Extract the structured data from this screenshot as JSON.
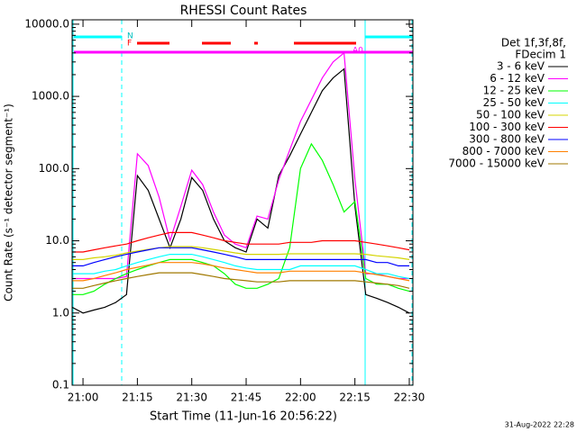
{
  "chart_data": {
    "type": "line",
    "title": "RHESSI Count Rates",
    "x_label": "Start Time (11-Jun-16 20:56:22)",
    "y_label": "Count Rate (s⁻¹ detector segment⁻¹)",
    "footer": "31-Aug-2022 22:28",
    "legend_title": [
      "Det 1f,3f,8f,",
      "FDecim 1"
    ],
    "annotations": [
      "N",
      "F",
      "A0"
    ],
    "log_y": true,
    "grid": false,
    "legend_position": "right",
    "xlim": [
      "20:57",
      "22:31"
    ],
    "xticks": [
      "21:00",
      "21:15",
      "21:30",
      "21:45",
      "22:00",
      "22:15",
      "22:30"
    ],
    "ylim": [
      0.1,
      11500
    ],
    "yticks": [
      0.1,
      {
        "value": 1,
        "label": "1.0"
      },
      {
        "value": 10,
        "label": "10.0"
      },
      {
        "value": 100,
        "label": "100.0"
      },
      {
        "value": 1000,
        "label": "1000.0"
      },
      {
        "value": 10000,
        "label": "10000.0"
      }
    ],
    "x": [
      "20:57",
      "21:00",
      "21:03",
      "21:06",
      "21:09",
      "21:12",
      "21:15",
      "21:18",
      "21:21",
      "21:24",
      "21:27",
      "21:30",
      "21:33",
      "21:36",
      "21:39",
      "21:42",
      "21:45",
      "21:48",
      "21:51",
      "21:54",
      "21:57",
      "22:00",
      "22:03",
      "22:06",
      "22:09",
      "22:12",
      "22:15",
      "22:18",
      "22:21",
      "22:24",
      "22:27",
      "22:30"
    ],
    "series": [
      {
        "name": "3 - 6 keV",
        "color": "#000000",
        "values": [
          1.2,
          1.0,
          1.1,
          1.2,
          1.4,
          1.8,
          80,
          50,
          20,
          8,
          20,
          75,
          50,
          20,
          10,
          8,
          7,
          20,
          15,
          80,
          150,
          300,
          600,
          1200,
          1800,
          2400,
          30,
          1.8,
          1.6,
          1.4,
          1.2,
          1.0
        ]
      },
      {
        "name": "6 - 12 keV",
        "color": "#ff00ff",
        "values": [
          3,
          3,
          3,
          3,
          3,
          3.2,
          160,
          110,
          40,
          10,
          30,
          95,
          60,
          25,
          12,
          9,
          8,
          22,
          20,
          70,
          180,
          450,
          900,
          1800,
          3000,
          4000,
          70,
          3.5,
          3.5,
          3.2,
          3,
          3
        ]
      },
      {
        "name": "12 - 25 keV",
        "color": "#00ff00",
        "values": [
          1.8,
          1.8,
          2,
          2.5,
          3,
          3.5,
          4,
          4.5,
          5,
          5.5,
          5.5,
          5.5,
          5,
          4.5,
          3.5,
          2.5,
          2.2,
          2.2,
          2.5,
          3,
          8,
          100,
          220,
          130,
          60,
          25,
          35,
          3,
          2.5,
          2.5,
          2.2,
          2
        ]
      },
      {
        "name": "25 - 50 keV",
        "color": "#00ffff",
        "values": [
          3.5,
          3.5,
          3.5,
          3.8,
          4,
          4.5,
          5,
          5.5,
          6,
          6.5,
          6.5,
          6.5,
          6,
          5.5,
          5,
          4.5,
          4.2,
          4,
          4,
          4,
          4,
          4.5,
          4.5,
          4.5,
          4.5,
          4.5,
          4.5,
          4,
          3.5,
          3.5,
          3.2,
          3
        ]
      },
      {
        "name": "50 - 100 keV",
        "color": "#d4d400",
        "values": [
          5.5,
          5.5,
          5.8,
          6,
          6.3,
          6.8,
          7.2,
          7.6,
          8,
          8.3,
          8.3,
          8.3,
          8,
          7.6,
          7.2,
          6.8,
          6.5,
          6.5,
          6.5,
          6.5,
          6.6,
          6.6,
          6.6,
          6.6,
          6.6,
          6.6,
          6.6,
          6.5,
          6.2,
          6,
          5.8,
          5.5
        ]
      },
      {
        "name": "100 - 300 keV",
        "color": "#ff0000",
        "values": [
          7,
          7,
          7.5,
          8,
          8.5,
          9,
          10,
          11,
          12,
          13,
          13,
          13,
          12,
          11,
          10,
          9.5,
          9,
          9,
          9,
          9,
          9.5,
          9.5,
          9.5,
          10,
          10,
          10,
          10,
          9.5,
          9,
          8.5,
          8,
          7.5
        ]
      },
      {
        "name": "300 - 800 keV",
        "color": "#0000ff",
        "values": [
          4.5,
          4.5,
          5,
          5.5,
          6,
          6.5,
          7,
          7.5,
          8,
          8,
          8,
          8,
          7.5,
          7,
          6.5,
          6,
          5.5,
          5.5,
          5.5,
          5.5,
          5.5,
          5.5,
          5.5,
          5.5,
          5.5,
          5.5,
          5.5,
          5.5,
          5,
          5,
          4.5,
          4.5
        ]
      },
      {
        "name": "800 - 7000 keV",
        "color": "#ff8000",
        "values": [
          2.8,
          2.8,
          3,
          3.3,
          3.6,
          4,
          4.3,
          4.6,
          5,
          5,
          5,
          5,
          4.8,
          4.5,
          4.2,
          4,
          3.8,
          3.6,
          3.6,
          3.6,
          3.8,
          3.8,
          3.8,
          3.8,
          3.8,
          3.8,
          3.8,
          3.6,
          3.4,
          3.2,
          3,
          2.8
        ]
      },
      {
        "name": "7000 - 15000 keV",
        "color": "#a07800",
        "values": [
          2.2,
          2.2,
          2.4,
          2.6,
          2.8,
          3,
          3.2,
          3.4,
          3.6,
          3.6,
          3.6,
          3.6,
          3.4,
          3.2,
          3,
          2.9,
          2.8,
          2.7,
          2.7,
          2.7,
          2.8,
          2.8,
          2.8,
          2.8,
          2.8,
          2.8,
          2.8,
          2.7,
          2.6,
          2.5,
          2.4,
          2.2
        ]
      }
    ]
  }
}
